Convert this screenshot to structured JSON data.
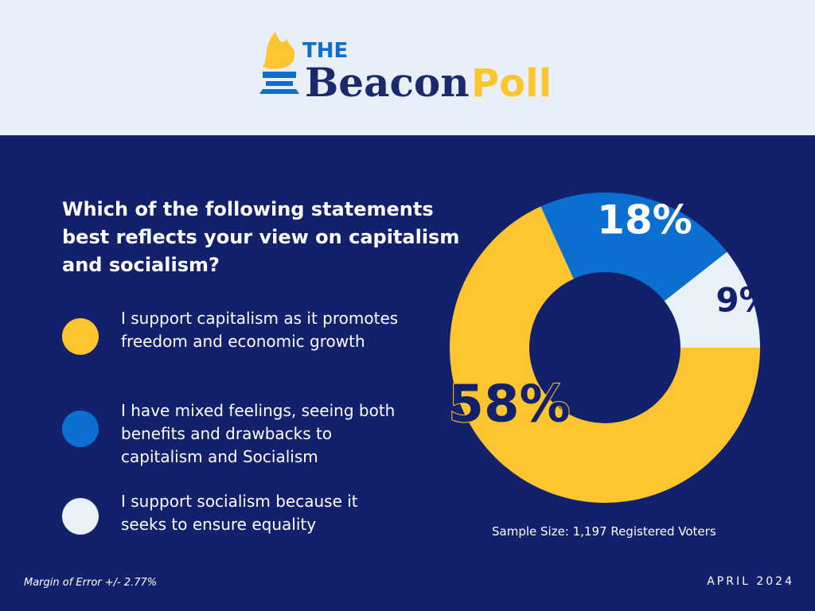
{
  "header": {
    "the": "THE",
    "beacon": "Beacon",
    "poll": "Poll"
  },
  "chart_data": {
    "type": "pie",
    "title": "Which of the following statements best reflects your view on capitalism and socialism?",
    "categories": [
      "I support capitalism as it promotes freedom and economic growth",
      "I have mixed feelings, seeing both benefits and drawbacks to capitalism and Socialism",
      "I support socialism because it seeks to ensure equality"
    ],
    "values": [
      58,
      18,
      9
    ],
    "value_labels": [
      "58%",
      "18%",
      "9%"
    ],
    "colors": [
      "#fdc52f",
      "#0a6fcf",
      "#eaf0f8"
    ],
    "sample_size": "Sample Size: 1,197 Registered Voters",
    "margin_of_error": "Margin of Error +/- 2.77%",
    "date": "APRIL 2024"
  }
}
